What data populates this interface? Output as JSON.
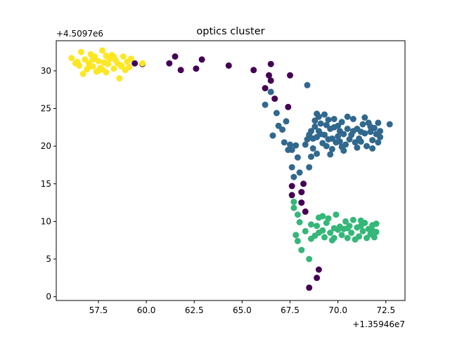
{
  "chart_data": {
    "type": "scatter",
    "title": "optics cluster",
    "xlabel": "",
    "ylabel": "",
    "x_offset_label": "+1.35946e7",
    "y_offset_label": "+4.5097e6",
    "xlim": [
      55.3,
      73.5
    ],
    "ylim": [
      -0.5,
      34.0
    ],
    "x_ticks": [
      57.5,
      60.0,
      62.5,
      65.0,
      67.5,
      70.0,
      72.5
    ],
    "x_tick_labels": [
      "57.5",
      "60.0",
      "62.5",
      "65.0",
      "67.5",
      "70.0",
      "72.5"
    ],
    "y_ticks": [
      0,
      5,
      10,
      15,
      20,
      25,
      30
    ],
    "y_tick_labels": [
      "0",
      "5",
      "10",
      "15",
      "20",
      "25",
      "30"
    ],
    "grid": false,
    "legend": "none",
    "series": [
      {
        "color": "#440154",
        "points": [
          [
            59.4,
            31.0
          ],
          [
            59.8,
            30.9
          ],
          [
            61.2,
            31.0
          ],
          [
            61.5,
            31.9
          ],
          [
            61.8,
            30.1
          ],
          [
            62.6,
            30.3
          ],
          [
            62.9,
            31.5
          ],
          [
            64.3,
            30.7
          ],
          [
            65.6,
            30.1
          ],
          [
            66.5,
            30.9
          ],
          [
            66.4,
            29.4
          ],
          [
            66.5,
            28.7
          ],
          [
            66.2,
            27.7
          ],
          [
            66.7,
            26.3
          ],
          [
            67.4,
            25.2
          ],
          [
            67.5,
            29.4
          ],
          [
            68.2,
            15.0
          ],
          [
            68.1,
            13.9
          ],
          [
            68.1,
            12.5
          ],
          [
            68.3,
            11.3
          ],
          [
            67.6,
            14.7
          ],
          [
            67.6,
            13.5
          ],
          [
            69.0,
            3.6
          ],
          [
            68.9,
            2.5
          ],
          [
            68.5,
            1.2
          ]
        ]
      },
      {
        "color": "#31688e",
        "points": [
          [
            66.5,
            27.2
          ],
          [
            66.2,
            25.5
          ],
          [
            66.8,
            24.4
          ],
          [
            66.6,
            21.4
          ],
          [
            66.9,
            22.7
          ],
          [
            67.1,
            22.2
          ],
          [
            67.2,
            20.5
          ],
          [
            67.3,
            23.3
          ],
          [
            67.4,
            19.5
          ],
          [
            67.6,
            19.5
          ],
          [
            67.5,
            20.2
          ],
          [
            67.8,
            20.1
          ],
          [
            67.6,
            17.2
          ],
          [
            67.7,
            15.9
          ],
          [
            67.9,
            18.5
          ],
          [
            68.0,
            16.5
          ],
          [
            68.4,
            28.1
          ],
          [
            68.3,
            20.2
          ],
          [
            68.4,
            20.9
          ],
          [
            68.5,
            21.5
          ],
          [
            68.5,
            17.2
          ],
          [
            68.6,
            18.6
          ],
          [
            68.7,
            19.7
          ],
          [
            68.6,
            22.0
          ],
          [
            68.8,
            22.6
          ],
          [
            68.8,
            23.4
          ],
          [
            68.9,
            21.2
          ],
          [
            69.0,
            22.0
          ],
          [
            69.1,
            23.0
          ],
          [
            69.2,
            20.4
          ],
          [
            69.3,
            21.5
          ],
          [
            69.4,
            22.8
          ],
          [
            69.5,
            23.5
          ],
          [
            69.5,
            20.9
          ],
          [
            69.6,
            22.3
          ],
          [
            69.7,
            21.0
          ],
          [
            69.7,
            19.6
          ],
          [
            69.8,
            22.5
          ],
          [
            69.9,
            20.5
          ],
          [
            70.0,
            21.3
          ],
          [
            70.1,
            22.0
          ],
          [
            70.1,
            20.6
          ],
          [
            70.2,
            23.2
          ],
          [
            70.3,
            21.6
          ],
          [
            70.4,
            20.2
          ],
          [
            70.5,
            22.3
          ],
          [
            70.6,
            20.9
          ],
          [
            70.7,
            21.5
          ],
          [
            70.8,
            23.6
          ],
          [
            70.9,
            20.5
          ],
          [
            71.0,
            22.3
          ],
          [
            71.1,
            21.0
          ],
          [
            71.2,
            20.6
          ],
          [
            71.3,
            22.9
          ],
          [
            71.4,
            21.7
          ],
          [
            71.5,
            20.0
          ],
          [
            71.6,
            23.1
          ],
          [
            71.7,
            21.9
          ],
          [
            71.8,
            20.8
          ],
          [
            71.9,
            22.4
          ],
          [
            72.0,
            21.6
          ],
          [
            72.1,
            20.5
          ],
          [
            72.2,
            21.2
          ],
          [
            72.2,
            22.0
          ],
          [
            72.7,
            22.9
          ],
          [
            69.0,
            23.9
          ],
          [
            69.3,
            24.2
          ],
          [
            68.9,
            19.0
          ],
          [
            69.6,
            18.9
          ],
          [
            70.3,
            19.4
          ],
          [
            71.0,
            19.8
          ],
          [
            71.8,
            19.7
          ],
          [
            70.5,
            23.9
          ],
          [
            71.4,
            23.8
          ],
          [
            69.8,
            23.6
          ],
          [
            68.7,
            21.0
          ],
          [
            69.1,
            21.6
          ],
          [
            70.0,
            22.7
          ],
          [
            70.8,
            22.0
          ],
          [
            71.7,
            22.6
          ],
          [
            72.1,
            23.1
          ],
          [
            69.4,
            20.0
          ],
          [
            70.2,
            19.9
          ],
          [
            71.2,
            21.9
          ],
          [
            68.9,
            24.3
          ]
        ]
      },
      {
        "color": "#35b779",
        "points": [
          [
            67.7,
            12.6
          ],
          [
            67.7,
            11.8
          ],
          [
            67.9,
            10.9
          ],
          [
            68.0,
            9.9
          ],
          [
            67.8,
            8.2
          ],
          [
            67.9,
            7.4
          ],
          [
            68.1,
            6.2
          ],
          [
            68.3,
            8.7
          ],
          [
            68.6,
            9.6
          ],
          [
            68.5,
            5.0
          ],
          [
            68.6,
            7.7
          ],
          [
            68.8,
            8.1
          ],
          [
            68.9,
            9.4
          ],
          [
            69.0,
            10.5
          ],
          [
            69.2,
            10.7
          ],
          [
            69.2,
            8.8
          ],
          [
            69.3,
            7.9
          ],
          [
            69.4,
            9.8
          ],
          [
            69.5,
            10.4
          ],
          [
            69.6,
            8.5
          ],
          [
            69.7,
            7.5
          ],
          [
            69.8,
            9.1
          ],
          [
            69.9,
            10.9
          ],
          [
            70.0,
            8.9
          ],
          [
            70.1,
            9.3
          ],
          [
            70.2,
            8.2
          ],
          [
            70.3,
            9.0
          ],
          [
            70.4,
            10.0
          ],
          [
            70.5,
            7.8
          ],
          [
            70.6,
            9.4
          ],
          [
            70.7,
            8.5
          ],
          [
            70.8,
            10.2
          ],
          [
            70.9,
            7.6
          ],
          [
            71.0,
            9.2
          ],
          [
            71.1,
            8.0
          ],
          [
            71.2,
            10.1
          ],
          [
            71.3,
            8.7
          ],
          [
            71.4,
            9.8
          ],
          [
            71.5,
            7.8
          ],
          [
            71.6,
            9.0
          ],
          [
            71.7,
            8.3
          ],
          [
            71.8,
            9.5
          ],
          [
            71.9,
            7.9
          ],
          [
            72.0,
            9.7
          ],
          [
            72.0,
            8.6
          ],
          [
            69.0,
            8.5
          ],
          [
            69.8,
            7.8
          ],
          [
            70.5,
            9.1
          ],
          [
            71.2,
            9.4
          ],
          [
            71.8,
            8.8
          ]
        ]
      },
      {
        "color": "#fde725",
        "points": [
          [
            56.1,
            31.7
          ],
          [
            56.3,
            31.0
          ],
          [
            56.5,
            30.7
          ],
          [
            56.6,
            32.5
          ],
          [
            56.7,
            29.6
          ],
          [
            56.8,
            31.5
          ],
          [
            56.9,
            30.2
          ],
          [
            57.0,
            31.0
          ],
          [
            57.1,
            32.2
          ],
          [
            57.2,
            30.6
          ],
          [
            57.3,
            31.9
          ],
          [
            57.4,
            29.9
          ],
          [
            57.5,
            31.3
          ],
          [
            57.6,
            30.4
          ],
          [
            57.7,
            32.7
          ],
          [
            57.8,
            31.1
          ],
          [
            57.9,
            29.8
          ],
          [
            58.0,
            30.9
          ],
          [
            58.1,
            31.6
          ],
          [
            58.2,
            32.1
          ],
          [
            58.3,
            30.3
          ],
          [
            58.4,
            31.4
          ],
          [
            58.5,
            31.0
          ],
          [
            58.6,
            29.0
          ],
          [
            58.7,
            30.7
          ],
          [
            58.8,
            31.9
          ],
          [
            58.9,
            30.1
          ],
          [
            59.0,
            31.2
          ],
          [
            59.1,
            30.5
          ],
          [
            59.2,
            31.6
          ],
          [
            57.2,
            31.5
          ],
          [
            57.9,
            32.0
          ],
          [
            58.3,
            31.9
          ],
          [
            57.5,
            30.0
          ],
          [
            58.0,
            31.8
          ],
          [
            57.0,
            30.5
          ],
          [
            58.7,
            30.6
          ],
          [
            59.8,
            31.0
          ],
          [
            56.4,
            31.2
          ],
          [
            57.7,
            30.2
          ]
        ]
      }
    ]
  }
}
